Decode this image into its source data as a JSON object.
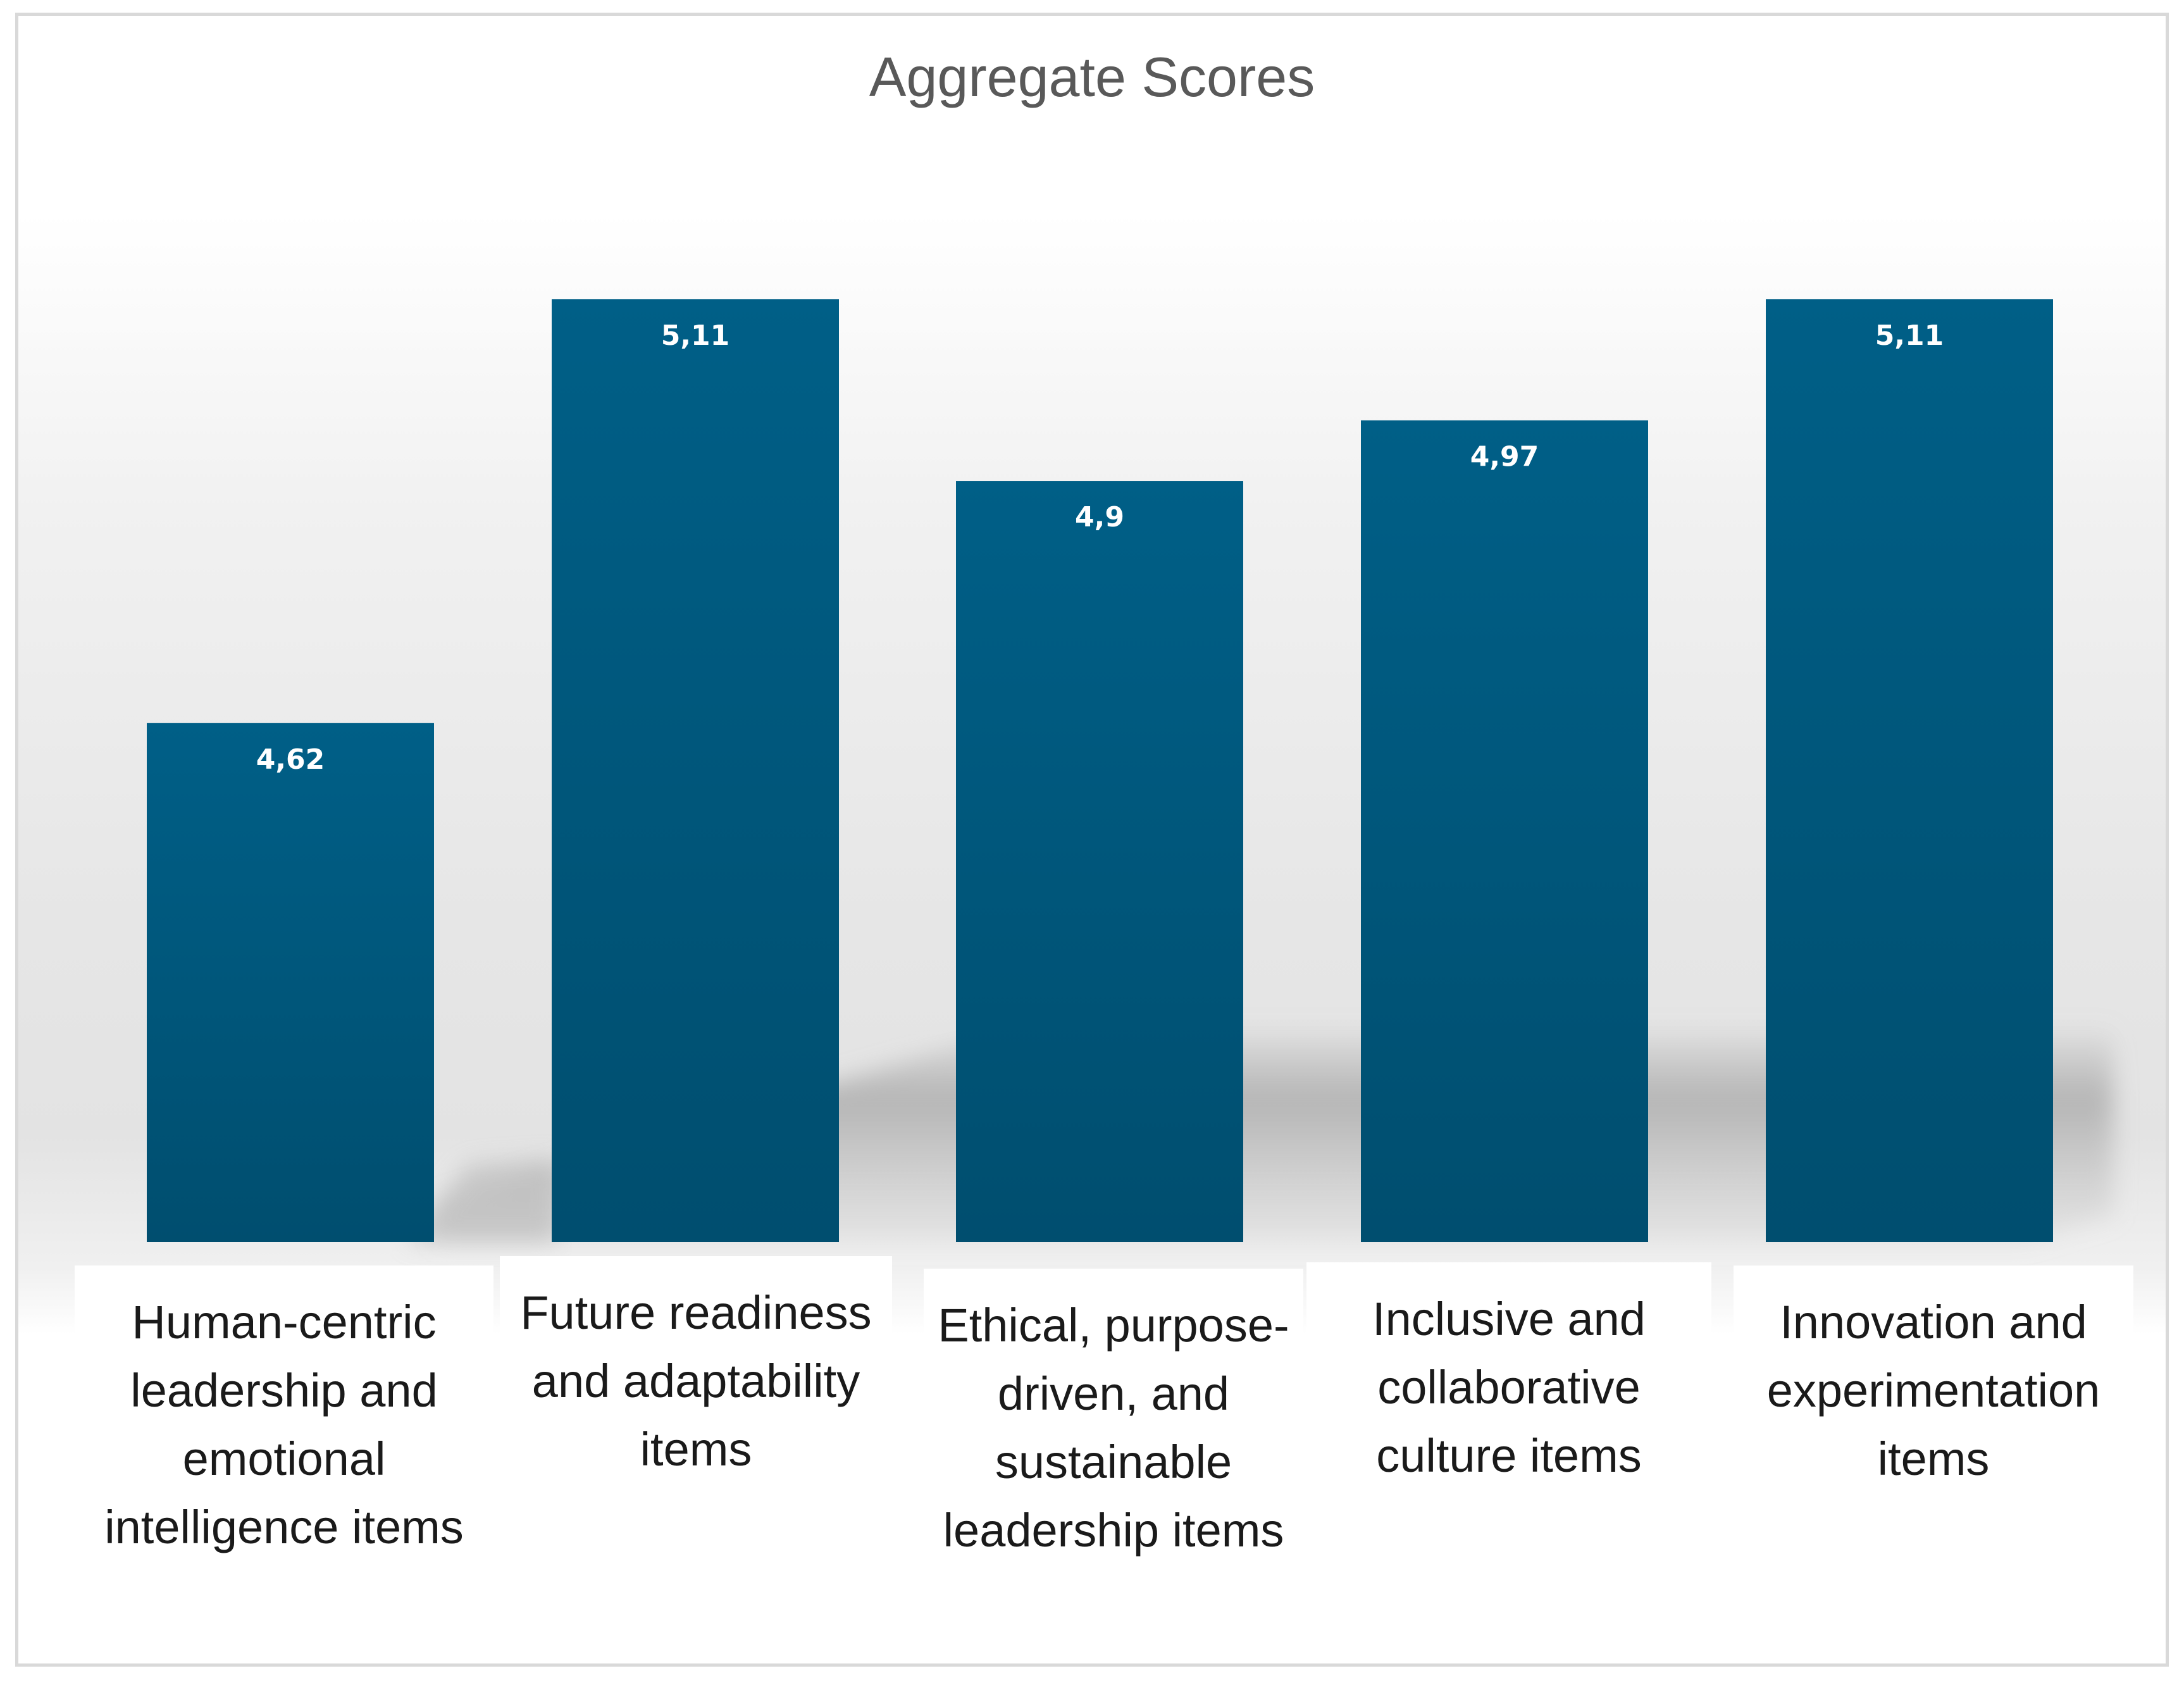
{
  "chart_data": {
    "type": "bar",
    "title": "Aggregate Scores",
    "categories": [
      "Human-centric leadership and emotional intelligence items",
      "Future readiness and adaptability items",
      "Ethical, purpose-driven, and sustainable leadership items",
      "Inclusive and collaborative culture items",
      "Innovation and experimentation items"
    ],
    "values": [
      4.62,
      5.11,
      4.9,
      4.97,
      5.11
    ],
    "value_labels": [
      "4,62",
      "5,11",
      "4,9",
      "4,97",
      "5,11"
    ],
    "xlabel": "",
    "ylabel": "",
    "ylim": [
      4.02,
      5.11
    ],
    "grid": false,
    "legend": "none",
    "bar_color": "#00587f"
  }
}
